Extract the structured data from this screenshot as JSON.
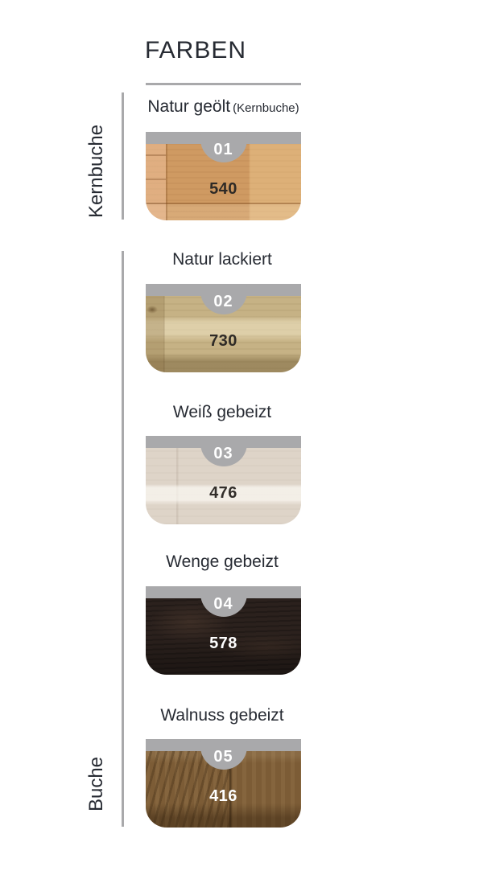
{
  "page": {
    "title": "FARBEN",
    "colors": {
      "gray": "#a9a9ab",
      "text": "#272b33",
      "background": "#ffffff"
    }
  },
  "sections": {
    "kernbuche": "Kernbuche",
    "buche": "Buche"
  },
  "swatches": [
    {
      "number": "01",
      "name": "Natur geölt",
      "note": "(Kernbuche)",
      "code": "540",
      "section": "Kernbuche",
      "colors": {
        "base": "#cf9a62",
        "light": "#dcab77",
        "dark": "#b9824c",
        "code": "#2e2a26"
      }
    },
    {
      "number": "02",
      "name": "Natur lackiert",
      "note": "",
      "code": "730",
      "section": "Buche",
      "colors": {
        "base": "#c6b285",
        "light": "#d8c99c",
        "dark": "#a89063",
        "code": "#2e2a26"
      }
    },
    {
      "number": "03",
      "name": "Weiß gebeizt",
      "note": "",
      "code": "476",
      "section": "Buche",
      "colors": {
        "base": "#ded4c8",
        "light": "#ece4da",
        "dark": "#cec2b4",
        "code": "#322e2a"
      }
    },
    {
      "number": "04",
      "name": "Wenge gebeizt",
      "note": "",
      "code": "578",
      "section": "Buche",
      "colors": {
        "base": "#2b211d",
        "light": "#4a382e",
        "dark": "#18110e",
        "code": "#ffffff"
      }
    },
    {
      "number": "05",
      "name": "Walnuss gebeizt",
      "note": "",
      "code": "416",
      "section": "Buche",
      "colors": {
        "base": "#7c5c36",
        "light": "#8f6e44",
        "dark": "#5d4326",
        "code": "#ffffff"
      }
    }
  ]
}
